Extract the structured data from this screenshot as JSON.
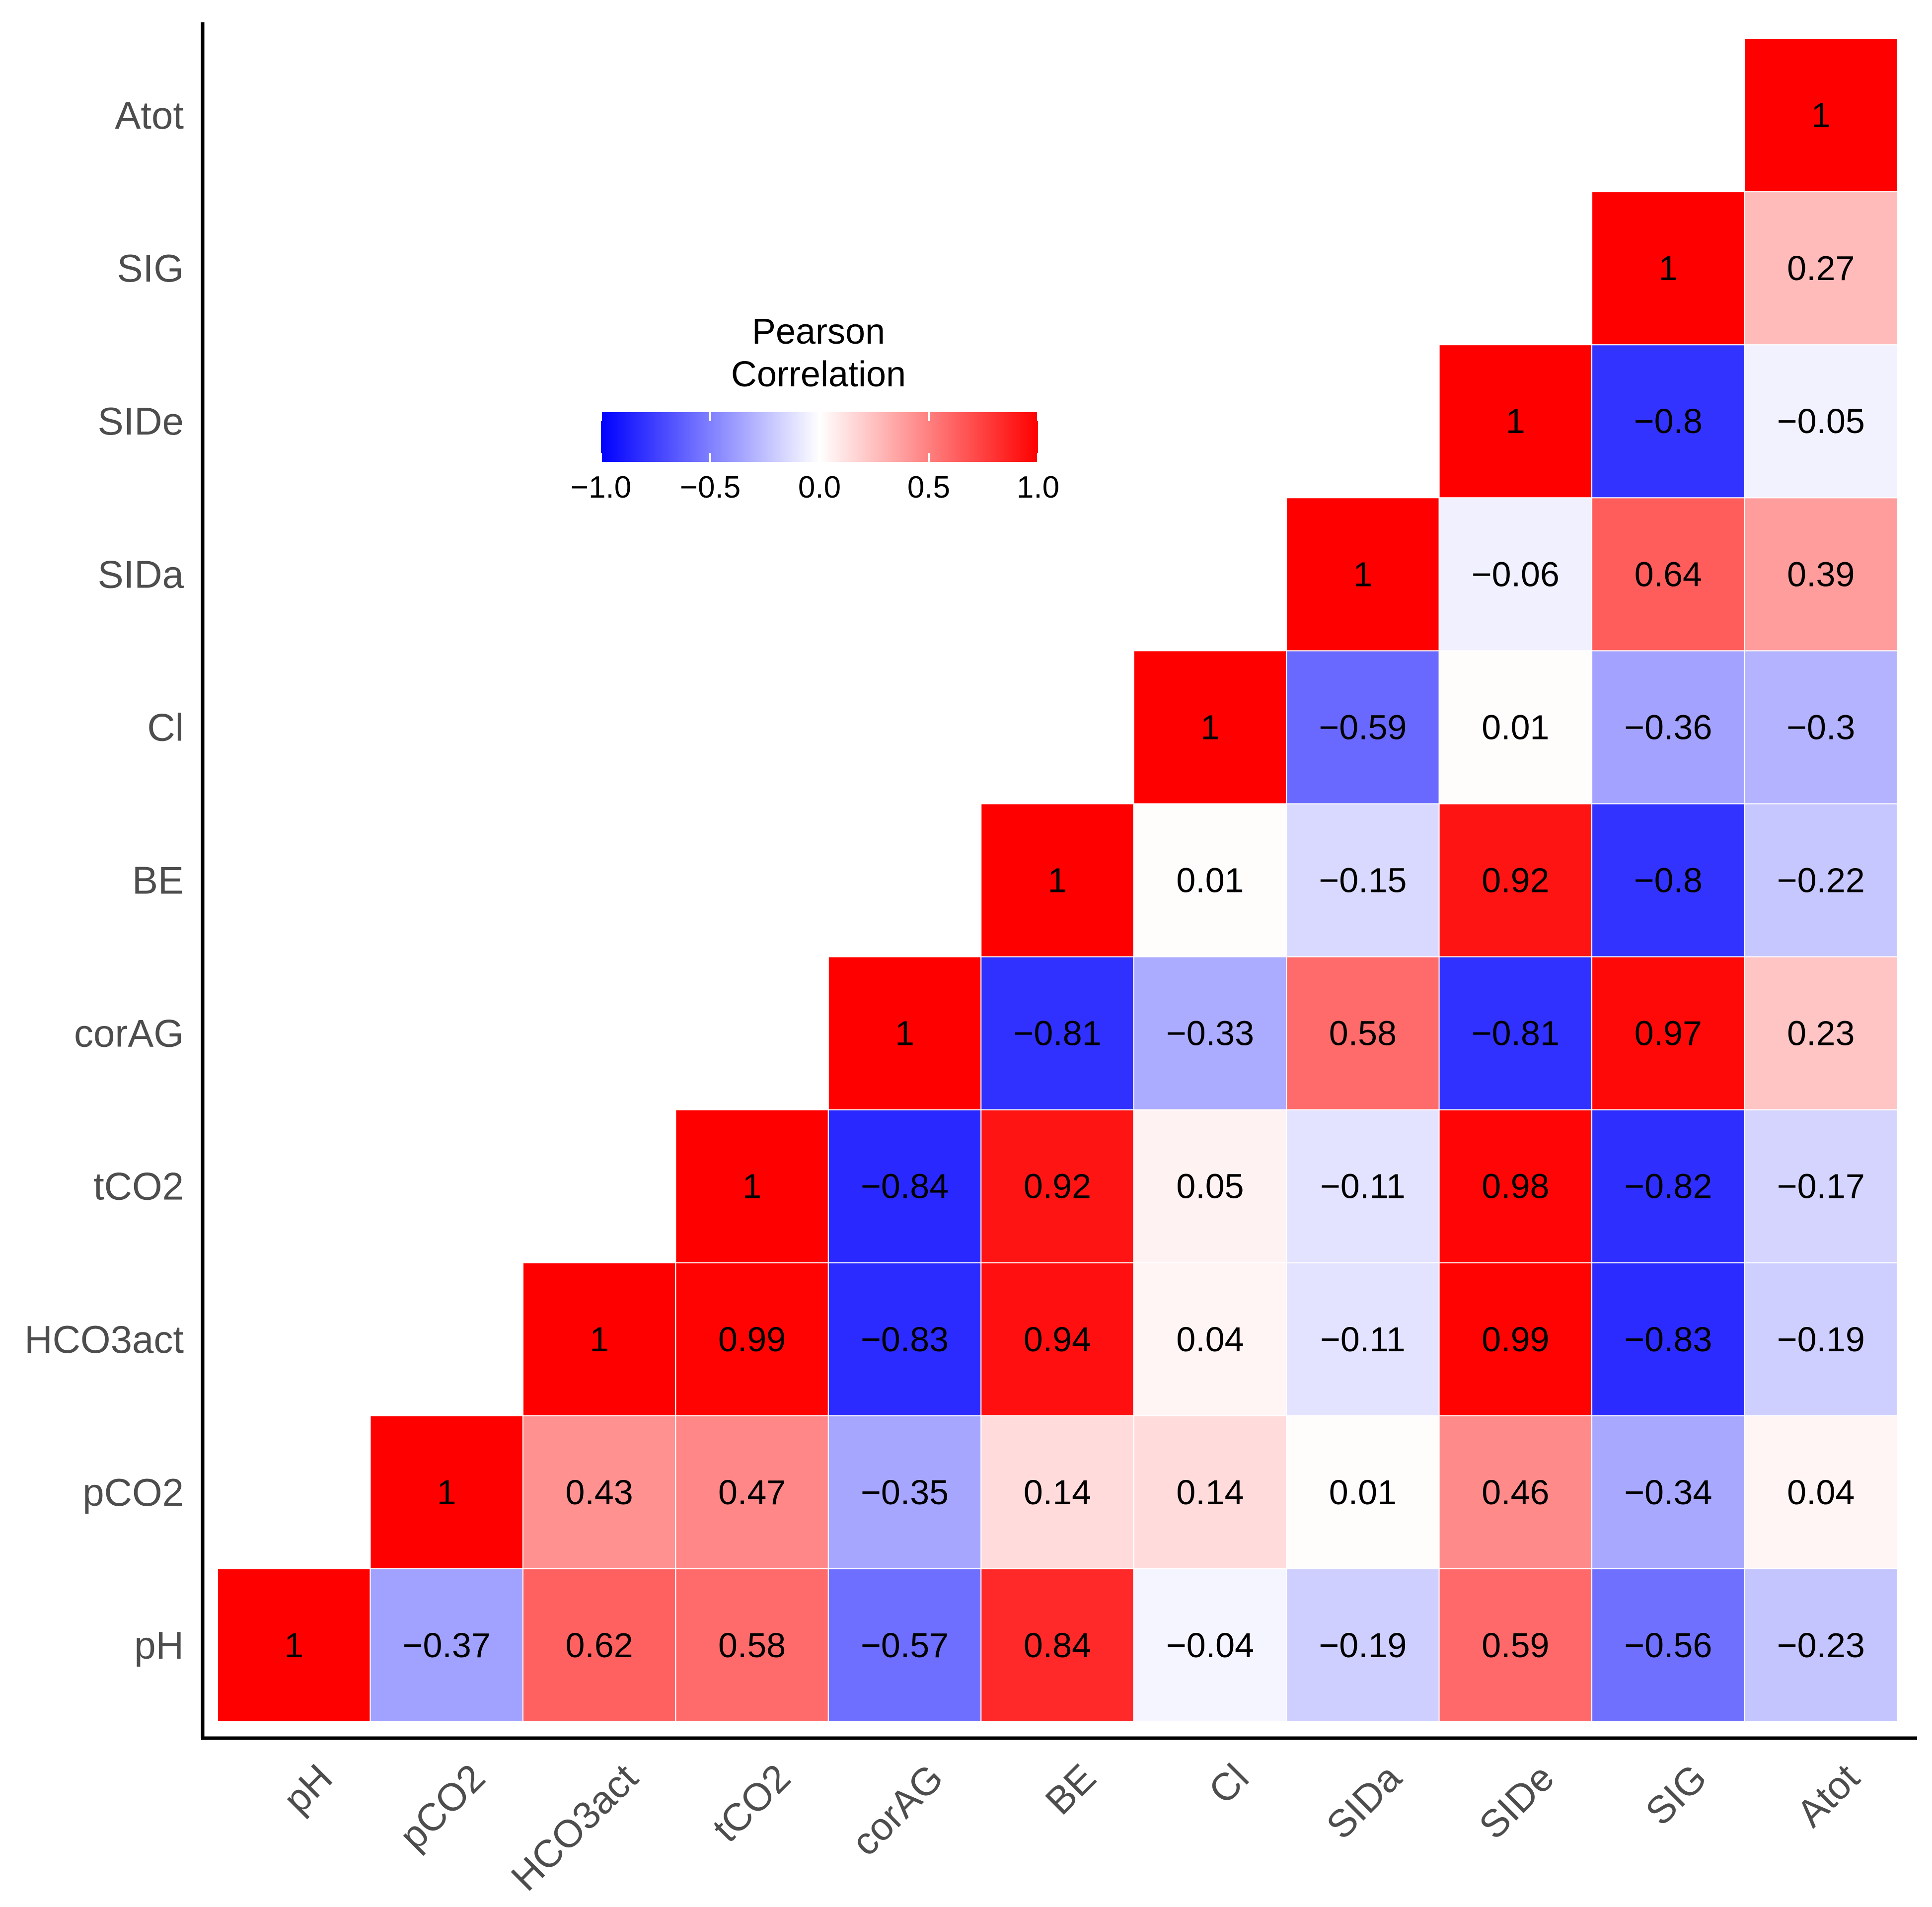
{
  "chart_data": {
    "type": "heatmap",
    "variables": [
      "pH",
      "pCO2",
      "HCO3act",
      "tCO2",
      "corAG",
      "BE",
      "Cl",
      "SIDa",
      "SIDe",
      "SIG",
      "Atot"
    ],
    "matrix": [
      [
        1,
        -0.37,
        0.62,
        0.58,
        -0.57,
        0.84,
        -0.04,
        -0.19,
        0.59,
        -0.56,
        -0.23
      ],
      [
        null,
        1,
        0.43,
        0.47,
        -0.35,
        0.14,
        0.14,
        0.01,
        0.46,
        -0.34,
        0.04
      ],
      [
        null,
        null,
        1,
        0.99,
        -0.83,
        0.94,
        0.04,
        -0.11,
        0.99,
        -0.83,
        -0.19
      ],
      [
        null,
        null,
        null,
        1,
        -0.84,
        0.92,
        0.05,
        -0.11,
        0.98,
        -0.82,
        -0.17
      ],
      [
        null,
        null,
        null,
        null,
        1,
        -0.81,
        -0.33,
        0.58,
        -0.81,
        0.97,
        0.23
      ],
      [
        null,
        null,
        null,
        null,
        null,
        1,
        0.01,
        -0.15,
        0.92,
        -0.8,
        -0.22
      ],
      [
        null,
        null,
        null,
        null,
        null,
        null,
        1,
        -0.59,
        0.01,
        -0.36,
        -0.3
      ],
      [
        null,
        null,
        null,
        null,
        null,
        null,
        null,
        1,
        -0.06,
        0.64,
        0.39
      ],
      [
        null,
        null,
        null,
        null,
        null,
        null,
        null,
        null,
        1,
        -0.8,
        -0.05
      ],
      [
        null,
        null,
        null,
        null,
        null,
        null,
        null,
        null,
        null,
        1,
        0.27
      ],
      [
        null,
        null,
        null,
        null,
        null,
        null,
        null,
        null,
        null,
        null,
        1
      ]
    ],
    "cell_labels": [
      [
        "1",
        "−0.37",
        "0.62",
        "0.58",
        "−0.57",
        "0.84",
        "−0.04",
        "−0.19",
        "0.59",
        "−0.56",
        "−0.23"
      ],
      [
        null,
        "1",
        "0.43",
        "0.47",
        "−0.35",
        "0.14",
        "0.14",
        "0.01",
        "0.46",
        "−0.34",
        "0.04"
      ],
      [
        null,
        null,
        "1",
        "0.99",
        "−0.83",
        "0.94",
        "0.04",
        "−0.11",
        "0.99",
        "−0.83",
        "−0.19"
      ],
      [
        null,
        null,
        null,
        "1",
        "−0.84",
        "0.92",
        "0.05",
        "−0.11",
        "0.98",
        "−0.82",
        "−0.17"
      ],
      [
        null,
        null,
        null,
        null,
        "1",
        "−0.81",
        "−0.33",
        "0.58",
        "−0.81",
        "0.97",
        "0.23"
      ],
      [
        null,
        null,
        null,
        null,
        null,
        "1",
        "0.01",
        "−0.15",
        "0.92",
        "−0.8",
        "−0.22"
      ],
      [
        null,
        null,
        null,
        null,
        null,
        null,
        "1",
        "−0.59",
        "0.01",
        "−0.36",
        "−0.3"
      ],
      [
        null,
        null,
        null,
        null,
        null,
        null,
        null,
        "1",
        "−0.06",
        "0.64",
        "0.39"
      ],
      [
        null,
        null,
        null,
        null,
        null,
        null,
        null,
        null,
        "1",
        "−0.8",
        "−0.05"
      ],
      [
        null,
        null,
        null,
        null,
        null,
        null,
        null,
        null,
        null,
        "1",
        "0.27"
      ],
      [
        null,
        null,
        null,
        null,
        null,
        null,
        null,
        null,
        null,
        null,
        "1"
      ]
    ],
    "legend": {
      "title_line1": "Pearson",
      "title_line2": "Correlation",
      "range": [
        -1,
        1
      ],
      "tick_values": [
        -1,
        -0.5,
        0,
        0.5,
        1
      ],
      "tick_labels": [
        "−1.0",
        "−0.5",
        "0.0",
        "0.5",
        "1.0"
      ],
      "placement": "upper-left inside plot"
    },
    "color_scale": {
      "low": "#0000ff",
      "mid": "#ffffff",
      "high": "#ff0000"
    },
    "axis_line_color": "#000000",
    "cell_border_color": "#ffffff"
  }
}
